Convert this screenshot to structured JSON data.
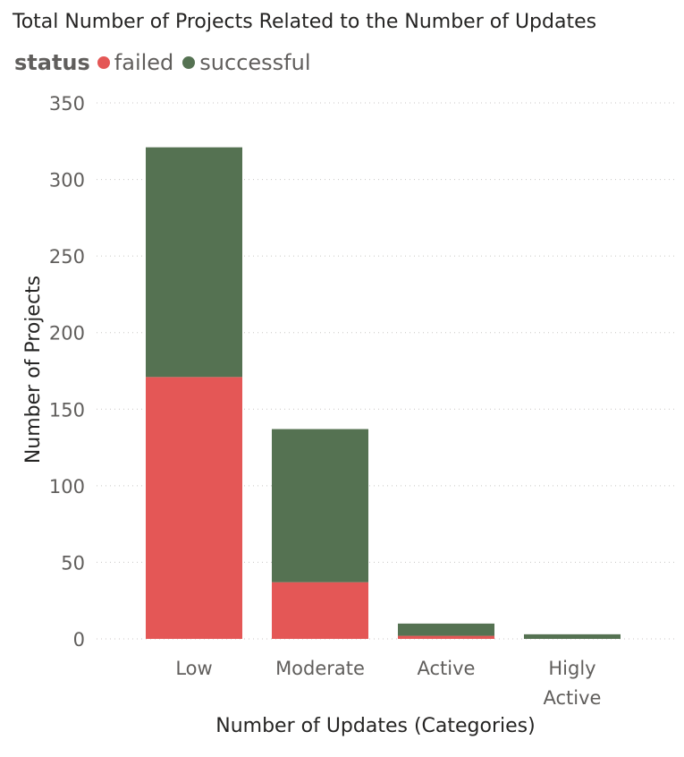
{
  "colors": {
    "failed": "#e45756",
    "successful": "#557252",
    "gridline": "#c8c6c4"
  },
  "chart_data": {
    "type": "bar",
    "stacked": true,
    "title": "Total Number of Projects Related to the Number of Updates",
    "xlabel": "Number of Updates (Categories)",
    "ylabel": "Number of Projects",
    "legend_title": "status",
    "legend_position": "top-left",
    "grid": true,
    "ylim": [
      0,
      350
    ],
    "yticks": [
      0,
      50,
      100,
      150,
      200,
      250,
      300,
      350
    ],
    "categories": [
      [
        "Low"
      ],
      [
        "Moderate"
      ],
      [
        "Active"
      ],
      [
        "Higly",
        "Active"
      ]
    ],
    "series": [
      {
        "name": "failed",
        "values": [
          171,
          37,
          2,
          0
        ]
      },
      {
        "name": "successful",
        "values": [
          150,
          100,
          8,
          3
        ]
      }
    ]
  }
}
